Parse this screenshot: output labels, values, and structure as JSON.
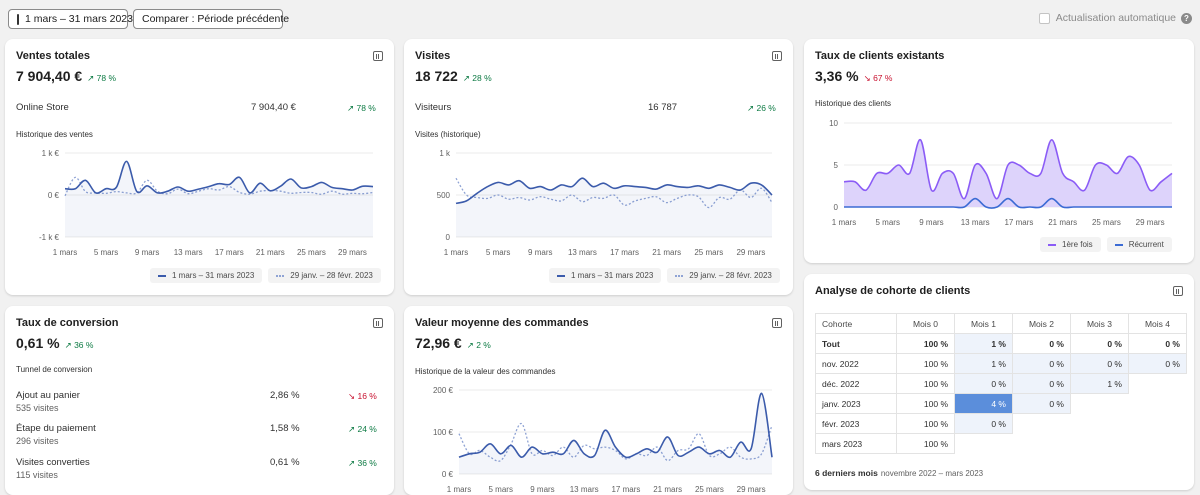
{
  "toolbar": {
    "date_range": "1 mars – 31 mars 2023",
    "compare": "Comparer : Période précédente",
    "auto_refresh": "Actualisation automatique"
  },
  "colors": {
    "current": "#3b5bab",
    "previous": "#8fa3d4",
    "purple": "#8b5cf6",
    "blue": "#3b6bd4",
    "up": "#0c7a43",
    "down": "#c8102e"
  },
  "x_ticks": [
    "1 mars",
    "5 mars",
    "9 mars",
    "13 mars",
    "17 mars",
    "21 mars",
    "25 mars",
    "29 mars"
  ],
  "sales": {
    "title": "Ventes totales",
    "value": "7 904,40 €",
    "delta": "↗ 78 %",
    "row_label": "Online Store",
    "row_value": "7 904,40 €",
    "row_delta": "↗ 78 %",
    "chart_title": "Historique des ventes",
    "legend_current": "1 mars – 31 mars 2023",
    "legend_previous": "29 janv. – 28 févr. 2023"
  },
  "visits": {
    "title": "Visites",
    "value": "18 722",
    "delta": "↗ 28 %",
    "row_label": "Visiteurs",
    "row_value": "16 787",
    "row_delta": "↗ 26 %",
    "chart_title": "Visites (historique)",
    "legend_current": "1 mars – 31 mars 2023",
    "legend_previous": "29 janv. – 28 févr. 2023"
  },
  "returning": {
    "title": "Taux de clients existants",
    "value": "3,36 %",
    "delta": "↘ 67 %",
    "chart_title": "Historique des clients",
    "legend_first": "1ère fois",
    "legend_returning": "Récurrent"
  },
  "conversion": {
    "title": "Taux de conversion",
    "value": "0,61 %",
    "delta": "↗ 36 %",
    "funnel_title": "Tunnel de conversion",
    "rows": [
      {
        "label": "Ajout au panier",
        "sub": "535 visites",
        "value": "2,86 %",
        "delta": "↘ 16 %"
      },
      {
        "label": "Étape du paiement",
        "sub": "296 visites",
        "value": "1,58 %",
        "delta": "↗ 24 %"
      },
      {
        "label": "Visites converties",
        "sub": "115 visites",
        "value": "0,61 %",
        "delta": "↗ 36 %"
      }
    ]
  },
  "aov": {
    "title": "Valeur moyenne des commandes",
    "value": "72,96 €",
    "delta": "↗ 2 %",
    "chart_title": "Historique de la valeur des commandes"
  },
  "cohort": {
    "title": "Analyse de cohorte de clients",
    "headers": [
      "Cohorte",
      "Mois 0",
      "Mois 1",
      "Mois 2",
      "Mois 3",
      "Mois 4"
    ],
    "rows": [
      {
        "label": "Tout",
        "cells": [
          "100 %",
          "1 %",
          "0 %",
          "0 %",
          "0 %"
        ]
      },
      {
        "label": "nov. 2022",
        "cells": [
          "100 %",
          "1 %",
          "0 %",
          "0 %",
          "0 %"
        ]
      },
      {
        "label": "déc. 2022",
        "cells": [
          "100 %",
          "0 %",
          "0 %",
          "1 %"
        ]
      },
      {
        "label": "janv. 2023",
        "cells": [
          "100 %",
          "4 %",
          "0 %"
        ]
      },
      {
        "label": "févr. 2023",
        "cells": [
          "100 %",
          "0 %"
        ]
      },
      {
        "label": "mars 2023",
        "cells": [
          "100 %"
        ]
      }
    ],
    "footer_bold": "6 derniers mois",
    "footer_range": "novembre 2022 – mars 2023"
  },
  "chart_data": [
    {
      "type": "line",
      "title": "Historique des ventes",
      "x": [
        1,
        2,
        3,
        4,
        5,
        6,
        7,
        8,
        9,
        10,
        11,
        12,
        13,
        14,
        15,
        16,
        17,
        18,
        19,
        20,
        21,
        22,
        23,
        24,
        25,
        26,
        27,
        28,
        29,
        30,
        31
      ],
      "y_ticks": [
        "1 k €",
        "0 €",
        "-1 k €"
      ],
      "ylim": [
        -1000,
        1000
      ],
      "series": [
        {
          "name": "1 mars – 31 mars 2023",
          "values": [
            150,
            150,
            350,
            50,
            150,
            180,
            800,
            80,
            220,
            50,
            90,
            190,
            90,
            140,
            200,
            270,
            250,
            420,
            50,
            280,
            100,
            210,
            380,
            170,
            200,
            300,
            180,
            150,
            120,
            210,
            200
          ]
        },
        {
          "name": "29 janv. – 28 févr. 2023",
          "values": [
            -20,
            420,
            80,
            50,
            40,
            80,
            50,
            50,
            350,
            90,
            30,
            140,
            30,
            90,
            150,
            120,
            200,
            60,
            20,
            90,
            110,
            90,
            40,
            60,
            60,
            20,
            90,
            20,
            40,
            30,
            60
          ]
        }
      ]
    },
    {
      "type": "line",
      "title": "Visites (historique)",
      "x": [
        1,
        2,
        3,
        4,
        5,
        6,
        7,
        8,
        9,
        10,
        11,
        12,
        13,
        14,
        15,
        16,
        17,
        18,
        19,
        20,
        21,
        22,
        23,
        24,
        25,
        26,
        27,
        28,
        29,
        30,
        31
      ],
      "y_ticks": [
        "1 k",
        "500",
        "0"
      ],
      "ylim": [
        0,
        1000
      ],
      "series": [
        {
          "name": "1 mars – 31 mars 2023",
          "values": [
            400,
            430,
            520,
            600,
            650,
            620,
            670,
            580,
            600,
            560,
            620,
            600,
            700,
            600,
            640,
            580,
            610,
            600,
            590,
            570,
            620,
            600,
            590,
            610,
            580,
            620,
            590,
            560,
            640,
            620,
            500
          ]
        },
        {
          "name": "29 janv. – 28 févr. 2023",
          "values": [
            700,
            500,
            470,
            460,
            500,
            450,
            470,
            440,
            480,
            450,
            430,
            500,
            420,
            470,
            460,
            500,
            380,
            430,
            460,
            480,
            410,
            460,
            500,
            480,
            350,
            470,
            450,
            560,
            470,
            580,
            410
          ]
        }
      ]
    },
    {
      "type": "area",
      "title": "Historique des clients",
      "x": [
        1,
        2,
        3,
        4,
        5,
        6,
        7,
        8,
        9,
        10,
        11,
        12,
        13,
        14,
        15,
        16,
        17,
        18,
        19,
        20,
        21,
        22,
        23,
        24,
        25,
        26,
        27,
        28,
        29,
        30,
        31
      ],
      "y_ticks": [
        "10",
        "5",
        "0"
      ],
      "ylim": [
        0,
        10
      ],
      "series": [
        {
          "name": "1ère fois",
          "values": [
            3,
            3,
            2,
            4,
            4,
            5,
            4,
            8,
            2,
            4,
            4,
            1,
            5,
            4,
            1,
            5,
            5,
            4,
            4,
            8,
            4,
            3,
            2,
            5,
            5,
            4,
            6,
            5,
            2,
            3,
            4
          ]
        },
        {
          "name": "Récurrent",
          "values": [
            0,
            0,
            0,
            0,
            0,
            0,
            0,
            0,
            0,
            0,
            0,
            0,
            1,
            0,
            0,
            1,
            0,
            0,
            0,
            1,
            0,
            0,
            0,
            0,
            0,
            0,
            0,
            0,
            0,
            0,
            0
          ]
        }
      ]
    },
    {
      "type": "line",
      "title": "Historique de la valeur des commandes",
      "x": [
        1,
        2,
        3,
        4,
        5,
        6,
        7,
        8,
        9,
        10,
        11,
        12,
        13,
        14,
        15,
        16,
        17,
        18,
        19,
        20,
        21,
        22,
        23,
        24,
        25,
        26,
        27,
        28,
        29,
        30,
        31
      ],
      "y_ticks": [
        "200 €",
        "100 €",
        "0 €"
      ],
      "ylim": [
        0,
        250
      ],
      "series": [
        {
          "name": "1 mars – 31 mars 2023",
          "values": [
            50,
            60,
            65,
            90,
            60,
            85,
            50,
            80,
            60,
            65,
            60,
            100,
            60,
            55,
            130,
            80,
            50,
            60,
            75,
            65,
            110,
            55,
            65,
            80,
            60,
            70,
            50,
            95,
            75,
            240,
            50
          ]
        },
        {
          "name": "29 janv. – 28 févr. 2023",
          "values": [
            120,
            60,
            70,
            50,
            40,
            90,
            150,
            60,
            70,
            55,
            80,
            50,
            85,
            75,
            80,
            70,
            45,
            60,
            55,
            80,
            40,
            70,
            75,
            120,
            55,
            60,
            80,
            50,
            45,
            60,
            145
          ]
        }
      ]
    }
  ]
}
